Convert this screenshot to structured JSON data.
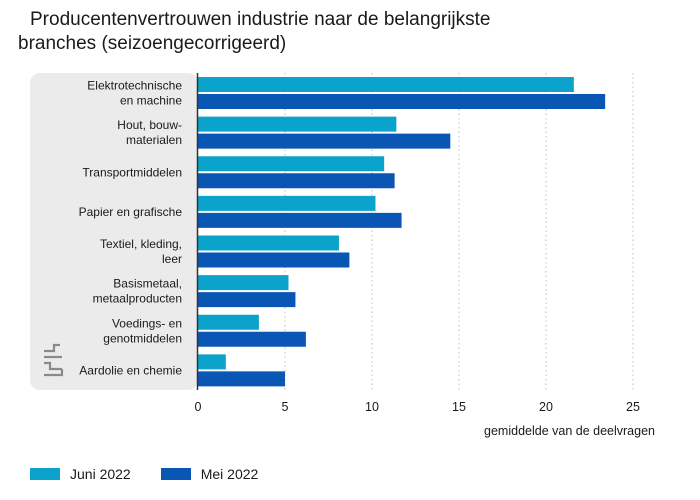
{
  "chart_data": {
    "type": "bar",
    "orientation": "horizontal",
    "title_line1": "Producentenvertrouwen industrie naar de belangrijkste",
    "title_line2": "branches (seizoengecorrigeerd)",
    "xlabel": "gemiddelde van de deelvragen",
    "xlim": [
      0,
      25
    ],
    "xticks": [
      0,
      5,
      10,
      15,
      20,
      25
    ],
    "grid": "vertical-dotted",
    "legend_position": "bottom-left",
    "categories": [
      [
        "Elektrotechnische",
        "en machine"
      ],
      [
        "Hout, bouw-",
        "materialen"
      ],
      [
        "Transportmiddelen"
      ],
      [
        "Papier en grafische"
      ],
      [
        "Textiel, kleding,",
        "leer"
      ],
      [
        "Basismetaal,",
        "metaalproducten"
      ],
      [
        "Voedings- en",
        "genotmiddelen"
      ],
      [
        "Aardolie en chemie"
      ]
    ],
    "series": [
      {
        "name": "Juni 2022",
        "color": "#0ba3cc",
        "values": [
          21.6,
          11.4,
          10.7,
          10.2,
          8.1,
          5.2,
          3.5,
          1.6
        ]
      },
      {
        "name": "Mei 2022",
        "color": "#0a56b4",
        "values": [
          23.4,
          14.5,
          11.3,
          11.7,
          8.7,
          5.6,
          6.2,
          5.0
        ]
      }
    ]
  },
  "logo": {
    "text": "cbs",
    "icon": "cbs-logo-icon"
  }
}
